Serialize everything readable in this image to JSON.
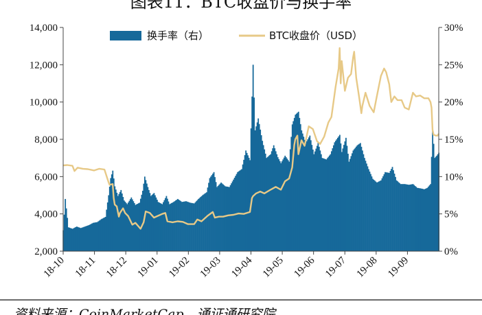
{
  "title": "图表11：BTC收盘价与换手率",
  "source": "资料来源：CoinMarketCap，通证通研究院",
  "chart_data": {
    "type": "bar+line",
    "categories": [
      "18-10",
      "18-11",
      "18-12",
      "19-01",
      "19-02",
      "19-03",
      "19-04",
      "19-05",
      "19-06",
      "19-07",
      "19-08",
      "19-09"
    ],
    "x_range": [
      "2018-10-01",
      "2019-09-30"
    ],
    "y_left": {
      "min": 2000,
      "max": 14000,
      "step": 2000,
      "ticks": [
        "2,000",
        "4,000",
        "6,000",
        "8,000",
        "10,000",
        "12,000",
        "14,000"
      ]
    },
    "y_right": {
      "min": 0,
      "max": 30,
      "step": 5,
      "ticks": [
        "0%",
        "5%",
        "10%",
        "15%",
        "20%",
        "25%",
        "30%"
      ]
    },
    "grid": false,
    "legend_position": "top",
    "series": [
      {
        "name": "换手率（右）",
        "type": "bar",
        "axis": "right",
        "unit": "%",
        "color": "#16699a",
        "points": [
          [
            "2018-10-01",
            2.8
          ],
          [
            "2018-10-03",
            7.0
          ],
          [
            "2018-10-06",
            3.2
          ],
          [
            "2018-10-10",
            3.0
          ],
          [
            "2018-10-14",
            3.3
          ],
          [
            "2018-10-18",
            3.1
          ],
          [
            "2018-10-22",
            3.3
          ],
          [
            "2018-10-26",
            3.5
          ],
          [
            "2018-10-30",
            3.8
          ],
          [
            "2018-11-03",
            3.9
          ],
          [
            "2018-11-07",
            4.3
          ],
          [
            "2018-11-11",
            4.6
          ],
          [
            "2018-11-14",
            7.5
          ],
          [
            "2018-11-16",
            9.8
          ],
          [
            "2018-11-18",
            10.8
          ],
          [
            "2018-11-20",
            8.7
          ],
          [
            "2018-11-23",
            7.4
          ],
          [
            "2018-11-26",
            8.2
          ],
          [
            "2018-11-29",
            6.8
          ],
          [
            "2018-12-02",
            6.3
          ],
          [
            "2018-12-06",
            7.2
          ],
          [
            "2018-12-10",
            6.2
          ],
          [
            "2018-12-14",
            6.5
          ],
          [
            "2018-12-17",
            8.1
          ],
          [
            "2018-12-19",
            10.0
          ],
          [
            "2018-12-22",
            8.6
          ],
          [
            "2018-12-25",
            7.4
          ],
          [
            "2018-12-28",
            7.8
          ],
          [
            "2019-01-01",
            6.6
          ],
          [
            "2019-01-05",
            6.3
          ],
          [
            "2019-01-09",
            7.4
          ],
          [
            "2019-01-12",
            6.3
          ],
          [
            "2019-01-16",
            6.6
          ],
          [
            "2019-01-20",
            7.0
          ],
          [
            "2019-01-24",
            6.6
          ],
          [
            "2019-01-28",
            6.7
          ],
          [
            "2019-02-01",
            6.5
          ],
          [
            "2019-02-05",
            6.4
          ],
          [
            "2019-02-09",
            7.0
          ],
          [
            "2019-02-13",
            7.5
          ],
          [
            "2019-02-17",
            7.9
          ],
          [
            "2019-02-20",
            9.8
          ],
          [
            "2019-02-24",
            10.6
          ],
          [
            "2019-02-27",
            8.6
          ],
          [
            "2019-03-03",
            9.2
          ],
          [
            "2019-03-07",
            8.7
          ],
          [
            "2019-03-11",
            8.6
          ],
          [
            "2019-03-15",
            9.6
          ],
          [
            "2019-03-19",
            10.6
          ],
          [
            "2019-03-23",
            11.0
          ],
          [
            "2019-03-27",
            13.5
          ],
          [
            "2019-03-31",
            12.2
          ],
          [
            "2019-04-03",
            25.0
          ],
          [
            "2019-04-05",
            16.2
          ],
          [
            "2019-04-08",
            17.8
          ],
          [
            "2019-04-12",
            14.8
          ],
          [
            "2019-04-16",
            12.5
          ],
          [
            "2019-04-20",
            13.0
          ],
          [
            "2019-04-23",
            14.2
          ],
          [
            "2019-04-27",
            12.6
          ],
          [
            "2019-04-30",
            11.8
          ],
          [
            "2019-05-04",
            12.8
          ],
          [
            "2019-05-08",
            12.0
          ],
          [
            "2019-05-11",
            17.0
          ],
          [
            "2019-05-14",
            18.3
          ],
          [
            "2019-05-17",
            18.7
          ],
          [
            "2019-05-20",
            16.2
          ],
          [
            "2019-05-24",
            14.5
          ],
          [
            "2019-05-28",
            15.5
          ],
          [
            "2019-06-01",
            13.0
          ],
          [
            "2019-06-05",
            14.5
          ],
          [
            "2019-06-09",
            12.5
          ],
          [
            "2019-06-13",
            12.3
          ],
          [
            "2019-06-17",
            13.0
          ],
          [
            "2019-06-21",
            14.6
          ],
          [
            "2019-06-24",
            15.2
          ],
          [
            "2019-06-26",
            15.6
          ],
          [
            "2019-06-28",
            13.3
          ],
          [
            "2019-07-02",
            15.2
          ],
          [
            "2019-07-05",
            12.0
          ],
          [
            "2019-07-09",
            13.5
          ],
          [
            "2019-07-13",
            14.2
          ],
          [
            "2019-07-16",
            14.5
          ],
          [
            "2019-07-20",
            12.5
          ],
          [
            "2019-07-24",
            11.0
          ],
          [
            "2019-07-28",
            9.7
          ],
          [
            "2019-08-01",
            9.2
          ],
          [
            "2019-08-05",
            9.5
          ],
          [
            "2019-08-09",
            10.6
          ],
          [
            "2019-08-13",
            10.5
          ],
          [
            "2019-08-16",
            11.3
          ],
          [
            "2019-08-20",
            9.5
          ],
          [
            "2019-08-24",
            9.0
          ],
          [
            "2019-08-28",
            9.0
          ],
          [
            "2019-09-01",
            8.9
          ],
          [
            "2019-09-05",
            9.0
          ],
          [
            "2019-09-09",
            8.5
          ],
          [
            "2019-09-13",
            8.4
          ],
          [
            "2019-09-16",
            8.3
          ],
          [
            "2019-09-19",
            8.5
          ],
          [
            "2019-09-22",
            9.0
          ],
          [
            "2019-09-24",
            16.3
          ],
          [
            "2019-09-26",
            12.5
          ],
          [
            "2019-09-28",
            12.8
          ],
          [
            "2019-09-30",
            13.2
          ]
        ]
      },
      {
        "name": "BTC收盘价（USD）",
        "type": "line",
        "axis": "left",
        "unit": "USD",
        "color": "#e7c987",
        "points": [
          [
            "2018-10-01",
            6600
          ],
          [
            "2018-10-05",
            6620
          ],
          [
            "2018-10-10",
            6580
          ],
          [
            "2018-10-12",
            6300
          ],
          [
            "2018-10-15",
            6480
          ],
          [
            "2018-10-20",
            6420
          ],
          [
            "2018-10-25",
            6400
          ],
          [
            "2018-10-31",
            6330
          ],
          [
            "2018-11-05",
            6420
          ],
          [
            "2018-11-10",
            6380
          ],
          [
            "2018-11-14",
            5700
          ],
          [
            "2018-11-15",
            5560
          ],
          [
            "2018-11-18",
            5600
          ],
          [
            "2018-11-19",
            4850
          ],
          [
            "2018-11-20",
            4500
          ],
          [
            "2018-11-22",
            4400
          ],
          [
            "2018-11-24",
            3850
          ],
          [
            "2018-11-25",
            4050
          ],
          [
            "2018-11-28",
            4300
          ],
          [
            "2018-11-30",
            4050
          ],
          [
            "2018-12-03",
            3880
          ],
          [
            "2018-12-07",
            3420
          ],
          [
            "2018-12-10",
            3520
          ],
          [
            "2018-12-15",
            3200
          ],
          [
            "2018-12-18",
            3550
          ],
          [
            "2018-12-20",
            4130
          ],
          [
            "2018-12-24",
            4050
          ],
          [
            "2018-12-28",
            3800
          ],
          [
            "2019-01-01",
            3900
          ],
          [
            "2019-01-05",
            4000
          ],
          [
            "2019-01-08",
            4050
          ],
          [
            "2019-01-10",
            3600
          ],
          [
            "2019-01-15",
            3550
          ],
          [
            "2019-01-20",
            3600
          ],
          [
            "2019-01-25",
            3570
          ],
          [
            "2019-01-30",
            3450
          ],
          [
            "2019-02-05",
            3450
          ],
          [
            "2019-02-08",
            3700
          ],
          [
            "2019-02-12",
            3600
          ],
          [
            "2019-02-18",
            3900
          ],
          [
            "2019-02-23",
            4100
          ],
          [
            "2019-02-25",
            3800
          ],
          [
            "2019-03-01",
            3850
          ],
          [
            "2019-03-05",
            3850
          ],
          [
            "2019-03-10",
            3920
          ],
          [
            "2019-03-15",
            3950
          ],
          [
            "2019-03-20",
            4020
          ],
          [
            "2019-03-25",
            4000
          ],
          [
            "2019-03-31",
            4100
          ],
          [
            "2019-04-02",
            4850
          ],
          [
            "2019-04-03",
            4950
          ],
          [
            "2019-04-06",
            5100
          ],
          [
            "2019-04-10",
            5200
          ],
          [
            "2019-04-14",
            5100
          ],
          [
            "2019-04-20",
            5300
          ],
          [
            "2019-04-25",
            5450
          ],
          [
            "2019-04-30",
            5300
          ],
          [
            "2019-05-04",
            5750
          ],
          [
            "2019-05-08",
            5900
          ],
          [
            "2019-05-11",
            6500
          ],
          [
            "2019-05-13",
            7700
          ],
          [
            "2019-05-14",
            8000
          ],
          [
            "2019-05-16",
            8200
          ],
          [
            "2019-05-17",
            7200
          ],
          [
            "2019-05-20",
            7950
          ],
          [
            "2019-05-23",
            7650
          ],
          [
            "2019-05-27",
            8700
          ],
          [
            "2019-05-31",
            8550
          ],
          [
            "2019-06-04",
            7900
          ],
          [
            "2019-06-07",
            7750
          ],
          [
            "2019-06-11",
            8150
          ],
          [
            "2019-06-15",
            8900
          ],
          [
            "2019-06-18",
            9200
          ],
          [
            "2019-06-22",
            10800
          ],
          [
            "2019-06-25",
            11800
          ],
          [
            "2019-06-26",
            12900
          ],
          [
            "2019-06-27",
            11000
          ],
          [
            "2019-06-28",
            12200
          ],
          [
            "2019-07-01",
            10600
          ],
          [
            "2019-07-04",
            11300
          ],
          [
            "2019-07-07",
            11500
          ],
          [
            "2019-07-09",
            12400
          ],
          [
            "2019-07-10",
            12700
          ],
          [
            "2019-07-12",
            11300
          ],
          [
            "2019-07-15",
            10200
          ],
          [
            "2019-07-17",
            9400
          ],
          [
            "2019-07-18",
            9800
          ],
          [
            "2019-07-21",
            10500
          ],
          [
            "2019-07-25",
            9800
          ],
          [
            "2019-07-29",
            9450
          ],
          [
            "2019-08-01",
            10300
          ],
          [
            "2019-08-05",
            11400
          ],
          [
            "2019-08-08",
            11800
          ],
          [
            "2019-08-10",
            11600
          ],
          [
            "2019-08-13",
            10950
          ],
          [
            "2019-08-15",
            10000
          ],
          [
            "2019-08-18",
            10300
          ],
          [
            "2019-08-21",
            10100
          ],
          [
            "2019-08-25",
            10100
          ],
          [
            "2019-08-28",
            9700
          ],
          [
            "2019-09-01",
            9600
          ],
          [
            "2019-09-05",
            10500
          ],
          [
            "2019-09-08",
            10300
          ],
          [
            "2019-09-12",
            10350
          ],
          [
            "2019-09-16",
            10200
          ],
          [
            "2019-09-20",
            10200
          ],
          [
            "2019-09-22",
            10000
          ],
          [
            "2019-09-23",
            9700
          ],
          [
            "2019-09-24",
            8500
          ],
          [
            "2019-09-25",
            8250
          ],
          [
            "2019-09-27",
            8200
          ],
          [
            "2019-09-29",
            8200
          ],
          [
            "2019-09-30",
            8300
          ]
        ]
      }
    ]
  }
}
